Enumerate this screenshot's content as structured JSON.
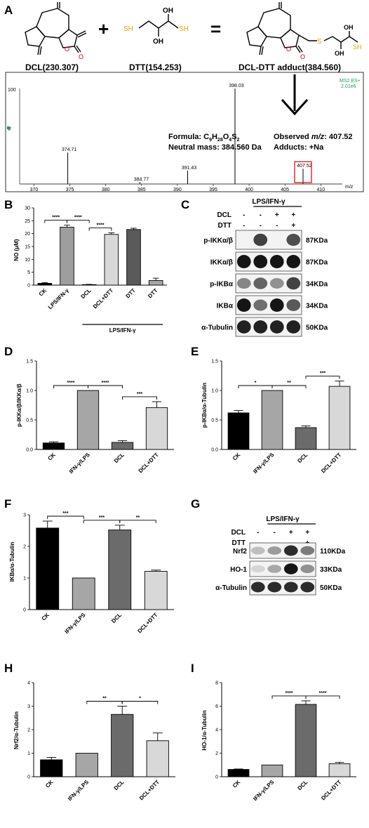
{
  "panelA": {
    "letter": "A",
    "dcl_label": "DCL(230.307)",
    "dtt_label": "DTT(154.253)",
    "adduct_label": "DCL-DTT adduct(384.560)",
    "plus": "+",
    "equals": "=",
    "atoms": {
      "o": "O",
      "oh": "OH",
      "sh": "SH",
      "s": "S"
    },
    "ms": {
      "corner_line1": "MS2 ES+",
      "corner_line2": "2.01e6",
      "y_top": "100",
      "y_mid": "%",
      "x_unit": "m/z",
      "x_min": 368,
      "x_max": 413,
      "x_ticks": [
        "370",
        "375",
        "380",
        "385",
        "390",
        "395",
        "400",
        "405",
        "410"
      ],
      "peaks": [
        {
          "mz": 374.71,
          "label": "374.71",
          "rel": 0.33
        },
        {
          "mz": 384.77,
          "label": "384.77",
          "rel": 0.02
        },
        {
          "mz": 391.43,
          "label": "391.43",
          "rel": 0.14
        },
        {
          "mz": 398.03,
          "label": "398.03",
          "rel": 1.0
        },
        {
          "mz": 407.52,
          "label": "407.52",
          "rel": 0.16
        }
      ],
      "formula_prefix": "Formula: C",
      "formula_c": "9",
      "formula_h_letter": "H",
      "formula_h": "28",
      "formula_o_letter": "O",
      "formula_o": "4",
      "formula_s_letter": "S",
      "formula_s": "2",
      "neutral_mass": "Neutral mass: 384.560 Da",
      "observed_prefix": "Observed ",
      "observed_mz": "m/z",
      "observed_value": ": 407.52",
      "adducts": "Adducts: +Na"
    }
  },
  "panelC": {
    "letter": "C",
    "header": "LPS/IFN-γ",
    "row_dcl": {
      "name": "DCL",
      "signs": [
        "-",
        "-",
        "+",
        "+"
      ]
    },
    "row_dtt": {
      "name": "DTT",
      "signs": [
        "-",
        "-",
        "-",
        "+"
      ]
    },
    "bands": [
      {
        "label": "p-IKKα/β",
        "kda": "87KDa"
      },
      {
        "label": "IKKα/β",
        "kda": "87KDa"
      },
      {
        "label": "p-IKBα",
        "kda": "34KDa"
      },
      {
        "label": "IKBα",
        "kda": "34KDa"
      },
      {
        "label": "α-Tubulin",
        "kda": "50KDa"
      }
    ]
  },
  "panelG": {
    "letter": "G",
    "header": "LPS/IFN-γ",
    "row_dcl": {
      "name": "DCL",
      "signs": [
        "-",
        "-",
        "+",
        "+"
      ]
    },
    "row_dtt": {
      "name": "DTT",
      "signs": [
        "-",
        "-",
        "-",
        "+"
      ]
    },
    "bands": [
      {
        "label": "Nrf2",
        "kda": "110KDa"
      },
      {
        "label": "HO-1",
        "kda": "33KDa"
      },
      {
        "label": "α-Tubulin",
        "kda": "50KDa"
      }
    ]
  },
  "chart_data": [
    {
      "panel": "B",
      "type": "bar",
      "ylabel": "NO (μM)",
      "ylim": [
        0,
        30
      ],
      "yticks": [
        "0",
        "5",
        "10",
        "15",
        "20",
        "25",
        "30"
      ],
      "categories": [
        "CK",
        "LPS/IFN-γ",
        "DCL",
        "DCL+DTT",
        "DTT",
        "DTT"
      ],
      "values": [
        0.7,
        22.5,
        0.2,
        19.7,
        21.6,
        1.8
      ],
      "errors": [
        0.3,
        0.8,
        0.1,
        0.6,
        0.5,
        0.9
      ],
      "colors": [
        "#000000",
        "#9e9e9e",
        "#ffffff",
        "#d8d8d8",
        "#5a5a5a",
        "#a6a6a6"
      ],
      "group_label": "LPS/IFN-γ",
      "significance": [
        {
          "from": 0,
          "to": 1,
          "label": "****"
        },
        {
          "from": 1,
          "to": 2,
          "label": "****"
        },
        {
          "from": 2,
          "to": 3,
          "label": "****"
        }
      ]
    },
    {
      "panel": "D",
      "type": "bar",
      "ylabel": "p-IKKα/β/IKKα/β",
      "ylim": [
        0,
        1.5
      ],
      "yticks": [
        "0.0",
        "0.5",
        "1.0",
        "1.5"
      ],
      "categories": [
        "CK",
        "IFN-γ/LPS",
        "DCL",
        "DCL+DTT"
      ],
      "values": [
        0.11,
        1.0,
        0.12,
        0.71
      ],
      "errors": [
        0.02,
        0.0,
        0.03,
        0.1
      ],
      "colors": [
        "#000000",
        "#a6a6a6",
        "#6b6b6b",
        "#d8d8d8"
      ],
      "significance": [
        {
          "from": 0,
          "to": 1,
          "label": "****"
        },
        {
          "from": 1,
          "to": 2,
          "label": "****"
        },
        {
          "from": 2,
          "to": 3,
          "label": "***"
        }
      ]
    },
    {
      "panel": "E",
      "type": "bar",
      "ylabel": "p-IKBα/α-Tubulin",
      "ylim": [
        0,
        1.5
      ],
      "yticks": [
        "0.0",
        "0.5",
        "1.0",
        "1.5"
      ],
      "categories": [
        "CK",
        "IFN-γ/LPS",
        "DCL",
        "DCL+DTT"
      ],
      "values": [
        0.62,
        1.0,
        0.37,
        1.07
      ],
      "errors": [
        0.04,
        0.0,
        0.03,
        0.09
      ],
      "colors": [
        "#000000",
        "#a6a6a6",
        "#6b6b6b",
        "#d8d8d8"
      ],
      "significance": [
        {
          "from": 0,
          "to": 1,
          "label": "*"
        },
        {
          "from": 1,
          "to": 2,
          "label": "**"
        },
        {
          "from": 2,
          "to": 3,
          "label": "***"
        }
      ]
    },
    {
      "panel": "F",
      "type": "bar",
      "ylabel": "IKBα/α-Tubulin",
      "ylim": [
        0,
        3
      ],
      "yticks": [
        "0",
        "1",
        "2",
        "3"
      ],
      "categories": [
        "CK",
        "IFN-γ/LPS",
        "DCL",
        "DCL+DTT"
      ],
      "values": [
        2.58,
        1.0,
        2.52,
        1.21
      ],
      "errors": [
        0.22,
        0.0,
        0.15,
        0.04
      ],
      "colors": [
        "#000000",
        "#a6a6a6",
        "#6b6b6b",
        "#d8d8d8"
      ],
      "significance": [
        {
          "from": 0,
          "to": 1,
          "label": "***"
        },
        {
          "from": 1,
          "to": 2,
          "label": "***"
        },
        {
          "from": 2,
          "to": 3,
          "label": "**"
        }
      ]
    },
    {
      "panel": "H",
      "type": "bar",
      "ylabel": "Nrf2/α-Tubulin",
      "ylim": [
        0,
        4
      ],
      "yticks": [
        "0",
        "1",
        "2",
        "3",
        "4"
      ],
      "categories": [
        "CK",
        "IFN-γ/LPS",
        "DCL",
        "DCL+DTT"
      ],
      "values": [
        0.72,
        1.0,
        2.65,
        1.53
      ],
      "errors": [
        0.1,
        0.0,
        0.35,
        0.33
      ],
      "colors": [
        "#000000",
        "#a6a6a6",
        "#6b6b6b",
        "#d8d8d8"
      ],
      "significance": [
        {
          "from": 1,
          "to": 2,
          "label": "**"
        },
        {
          "from": 2,
          "to": 3,
          "label": "*"
        }
      ]
    },
    {
      "panel": "I",
      "type": "bar",
      "ylabel": "HO-1/α-Tubulin",
      "ylim": [
        0,
        8
      ],
      "yticks": [
        "0",
        "2",
        "4",
        "6",
        "8"
      ],
      "categories": [
        "CK",
        "IFN-γ/LPS",
        "DCL",
        "DCL+DTT"
      ],
      "values": [
        0.62,
        1.0,
        6.15,
        1.1
      ],
      "errors": [
        0.04,
        0.0,
        0.3,
        0.12
      ],
      "colors": [
        "#000000",
        "#a6a6a6",
        "#6b6b6b",
        "#d8d8d8"
      ],
      "significance": [
        {
          "from": 1,
          "to": 2,
          "label": "****"
        },
        {
          "from": 2,
          "to": 3,
          "label": "****"
        }
      ]
    }
  ]
}
